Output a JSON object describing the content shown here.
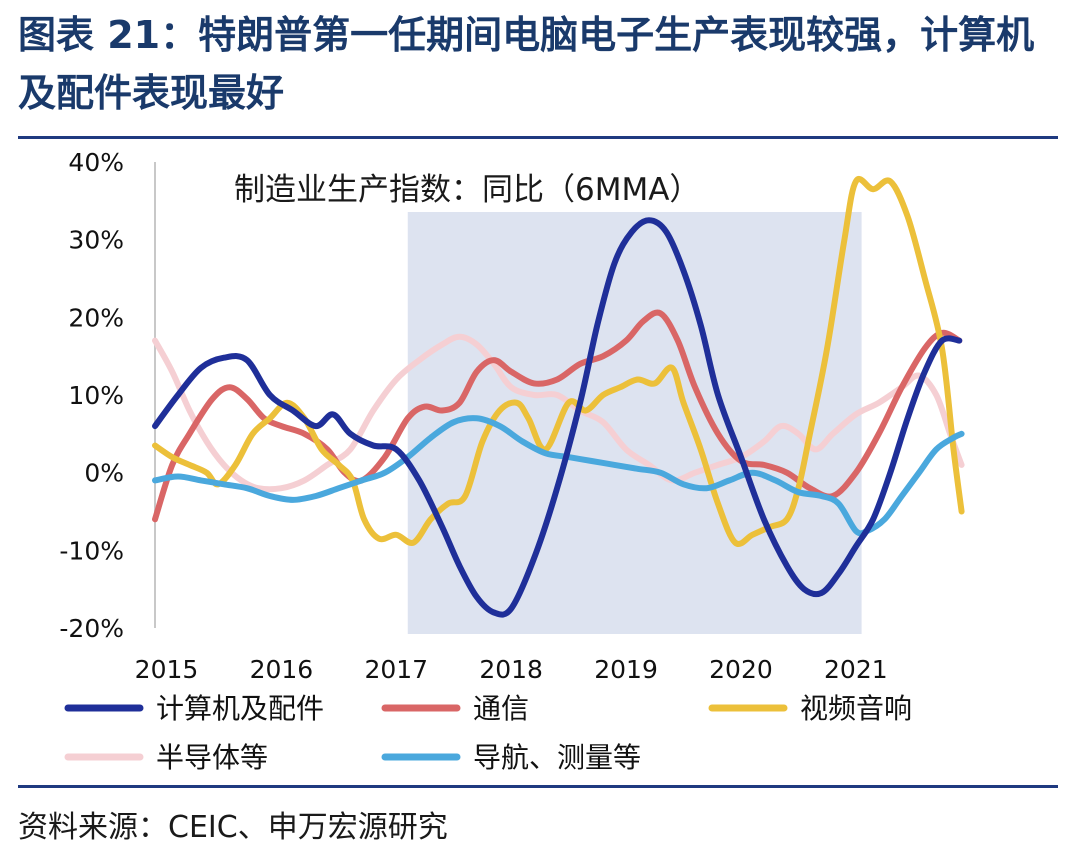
{
  "title": "图表 21：特朗普第一任期间电脑电子生产表现较强，计算机及配件表现最好",
  "source": "资料来源：CEIC、申万宏源研究",
  "chart_data": {
    "type": "line",
    "subtitle": "制造业生产指数：同比（6MMA）",
    "x_tick_labels": [
      "2015",
      "2016",
      "2017",
      "2018",
      "2019",
      "2020",
      "2021"
    ],
    "x_ticks": [
      2015,
      2016,
      2017,
      2018,
      2019,
      2020,
      2021
    ],
    "xlim": [
      2014.9,
      2021.95
    ],
    "ylim": [
      -20,
      40
    ],
    "y_ticks": [
      -20,
      -10,
      0,
      10,
      20,
      30,
      40
    ],
    "y_tick_labels": [
      "-20%",
      "-10%",
      "0%",
      "10%",
      "20%",
      "30%",
      "40%"
    ],
    "shaded_range": [
      2017.1,
      2021.05
    ],
    "grid": false,
    "legend_position": "bottom",
    "series": [
      {
        "name": "计算机及配件",
        "color": "#1f2f99",
        "points": [
          [
            2014.9,
            6
          ],
          [
            2015.1,
            10
          ],
          [
            2015.3,
            13.5
          ],
          [
            2015.5,
            14.8
          ],
          [
            2015.7,
            14.5
          ],
          [
            2015.9,
            10
          ],
          [
            2016.1,
            8
          ],
          [
            2016.3,
            6
          ],
          [
            2016.45,
            7.5
          ],
          [
            2016.6,
            5
          ],
          [
            2016.8,
            3.5
          ],
          [
            2017.0,
            3
          ],
          [
            2017.2,
            -1
          ],
          [
            2017.4,
            -7
          ],
          [
            2017.55,
            -12
          ],
          [
            2017.7,
            -16
          ],
          [
            2017.85,
            -18
          ],
          [
            2018.0,
            -17.5
          ],
          [
            2018.2,
            -11
          ],
          [
            2018.4,
            -2
          ],
          [
            2018.6,
            9
          ],
          [
            2018.75,
            19
          ],
          [
            2018.9,
            27
          ],
          [
            2019.05,
            31
          ],
          [
            2019.2,
            32.5
          ],
          [
            2019.35,
            31
          ],
          [
            2019.5,
            26
          ],
          [
            2019.65,
            19
          ],
          [
            2019.8,
            10
          ],
          [
            2020.0,
            2
          ],
          [
            2020.2,
            -6
          ],
          [
            2020.4,
            -12
          ],
          [
            2020.55,
            -15
          ],
          [
            2020.7,
            -15.5
          ],
          [
            2020.85,
            -13
          ],
          [
            2021.0,
            -9.5
          ],
          [
            2021.15,
            -6
          ],
          [
            2021.3,
            0
          ],
          [
            2021.45,
            7
          ],
          [
            2021.6,
            13
          ],
          [
            2021.75,
            17
          ],
          [
            2021.9,
            17
          ]
        ]
      },
      {
        "name": "通信",
        "color": "#d96666",
        "points": [
          [
            2014.9,
            -6
          ],
          [
            2015.05,
            1
          ],
          [
            2015.2,
            5
          ],
          [
            2015.4,
            9.5
          ],
          [
            2015.55,
            11
          ],
          [
            2015.7,
            9.5
          ],
          [
            2015.85,
            7
          ],
          [
            2016.0,
            6
          ],
          [
            2016.2,
            5
          ],
          [
            2016.4,
            3
          ],
          [
            2016.55,
            0
          ],
          [
            2016.7,
            -1
          ],
          [
            2016.9,
            2
          ],
          [
            2017.1,
            7
          ],
          [
            2017.25,
            8.5
          ],
          [
            2017.4,
            8
          ],
          [
            2017.55,
            9
          ],
          [
            2017.7,
            13
          ],
          [
            2017.85,
            14.5
          ],
          [
            2018.0,
            13
          ],
          [
            2018.2,
            11.5
          ],
          [
            2018.4,
            12
          ],
          [
            2018.6,
            14
          ],
          [
            2018.8,
            15
          ],
          [
            2019.0,
            17
          ],
          [
            2019.15,
            19.5
          ],
          [
            2019.3,
            20.5
          ],
          [
            2019.45,
            17
          ],
          [
            2019.6,
            11
          ],
          [
            2019.8,
            5
          ],
          [
            2020.0,
            1.5
          ],
          [
            2020.2,
            1
          ],
          [
            2020.4,
            0
          ],
          [
            2020.6,
            -2
          ],
          [
            2020.8,
            -3
          ],
          [
            2021.0,
            0
          ],
          [
            2021.2,
            5
          ],
          [
            2021.4,
            11
          ],
          [
            2021.6,
            16
          ],
          [
            2021.75,
            18
          ],
          [
            2021.9,
            17
          ]
        ]
      },
      {
        "name": "视频音响",
        "color": "#ecc03a",
        "points": [
          [
            2014.9,
            3.5
          ],
          [
            2015.05,
            2
          ],
          [
            2015.2,
            1
          ],
          [
            2015.35,
            0
          ],
          [
            2015.45,
            -1.5
          ],
          [
            2015.6,
            1
          ],
          [
            2015.75,
            5
          ],
          [
            2015.9,
            7
          ],
          [
            2016.05,
            9
          ],
          [
            2016.2,
            7
          ],
          [
            2016.35,
            3
          ],
          [
            2016.5,
            1
          ],
          [
            2016.62,
            -1
          ],
          [
            2016.72,
            -6
          ],
          [
            2016.85,
            -8.5
          ],
          [
            2017.0,
            -8
          ],
          [
            2017.15,
            -9
          ],
          [
            2017.3,
            -6
          ],
          [
            2017.45,
            -4
          ],
          [
            2017.6,
            -3
          ],
          [
            2017.75,
            4
          ],
          [
            2017.9,
            8
          ],
          [
            2018.05,
            9
          ],
          [
            2018.15,
            7
          ],
          [
            2018.3,
            3
          ],
          [
            2018.5,
            9
          ],
          [
            2018.65,
            8
          ],
          [
            2018.8,
            10
          ],
          [
            2018.95,
            11
          ],
          [
            2019.1,
            12
          ],
          [
            2019.25,
            11.5
          ],
          [
            2019.4,
            13.5
          ],
          [
            2019.5,
            9
          ],
          [
            2019.65,
            3
          ],
          [
            2019.8,
            -4
          ],
          [
            2019.95,
            -9
          ],
          [
            2020.1,
            -8
          ],
          [
            2020.25,
            -7
          ],
          [
            2020.4,
            -6
          ],
          [
            2020.5,
            -2
          ],
          [
            2020.6,
            5
          ],
          [
            2020.75,
            16
          ],
          [
            2020.9,
            30
          ],
          [
            2021.0,
            37.5
          ],
          [
            2021.15,
            36.5
          ],
          [
            2021.3,
            37.5
          ],
          [
            2021.45,
            33
          ],
          [
            2021.6,
            25
          ],
          [
            2021.75,
            16
          ],
          [
            2021.85,
            3
          ],
          [
            2021.92,
            -5
          ]
        ]
      },
      {
        "name": "半导体等",
        "color": "#f5cfd3",
        "points": [
          [
            2014.9,
            17
          ],
          [
            2015.05,
            13
          ],
          [
            2015.2,
            8
          ],
          [
            2015.35,
            4
          ],
          [
            2015.5,
            1
          ],
          [
            2015.65,
            -1
          ],
          [
            2015.8,
            -2
          ],
          [
            2016.0,
            -2
          ],
          [
            2016.2,
            -1
          ],
          [
            2016.4,
            1
          ],
          [
            2016.6,
            3
          ],
          [
            2016.8,
            8
          ],
          [
            2017.0,
            12
          ],
          [
            2017.2,
            14.5
          ],
          [
            2017.4,
            16.5
          ],
          [
            2017.55,
            17.5
          ],
          [
            2017.7,
            16.5
          ],
          [
            2017.85,
            14
          ],
          [
            2018.0,
            11
          ],
          [
            2018.2,
            10
          ],
          [
            2018.4,
            10
          ],
          [
            2018.6,
            8
          ],
          [
            2018.8,
            6.5
          ],
          [
            2019.0,
            3
          ],
          [
            2019.2,
            1
          ],
          [
            2019.4,
            -1
          ],
          [
            2019.6,
            0
          ],
          [
            2019.8,
            1
          ],
          [
            2020.0,
            2
          ],
          [
            2020.2,
            4
          ],
          [
            2020.35,
            6
          ],
          [
            2020.5,
            5
          ],
          [
            2020.65,
            3
          ],
          [
            2020.8,
            5
          ],
          [
            2021.0,
            7.5
          ],
          [
            2021.2,
            9
          ],
          [
            2021.4,
            11
          ],
          [
            2021.55,
            12.5
          ],
          [
            2021.7,
            10
          ],
          [
            2021.82,
            5
          ],
          [
            2021.92,
            1
          ]
        ]
      },
      {
        "name": "导航、测量等",
        "color": "#4aa8dd",
        "points": [
          [
            2014.9,
            -1
          ],
          [
            2015.1,
            -0.5
          ],
          [
            2015.3,
            -1
          ],
          [
            2015.5,
            -1.5
          ],
          [
            2015.7,
            -2
          ],
          [
            2015.9,
            -3
          ],
          [
            2016.1,
            -3.5
          ],
          [
            2016.3,
            -3
          ],
          [
            2016.5,
            -2
          ],
          [
            2016.7,
            -1
          ],
          [
            2016.9,
            0
          ],
          [
            2017.1,
            2
          ],
          [
            2017.3,
            4.5
          ],
          [
            2017.5,
            6.5
          ],
          [
            2017.7,
            7
          ],
          [
            2017.9,
            6
          ],
          [
            2018.1,
            4
          ],
          [
            2018.3,
            2.5
          ],
          [
            2018.5,
            2
          ],
          [
            2018.7,
            1.5
          ],
          [
            2018.9,
            1
          ],
          [
            2019.1,
            0.5
          ],
          [
            2019.3,
            0
          ],
          [
            2019.5,
            -1.5
          ],
          [
            2019.7,
            -2
          ],
          [
            2019.9,
            -1
          ],
          [
            2020.1,
            0
          ],
          [
            2020.3,
            -1
          ],
          [
            2020.5,
            -2.5
          ],
          [
            2020.7,
            -3
          ],
          [
            2020.85,
            -4
          ],
          [
            2021.0,
            -7.5
          ],
          [
            2021.1,
            -7.5
          ],
          [
            2021.25,
            -6
          ],
          [
            2021.4,
            -3
          ],
          [
            2021.55,
            0
          ],
          [
            2021.7,
            3
          ],
          [
            2021.85,
            4.5
          ],
          [
            2021.92,
            5
          ]
        ]
      }
    ]
  }
}
